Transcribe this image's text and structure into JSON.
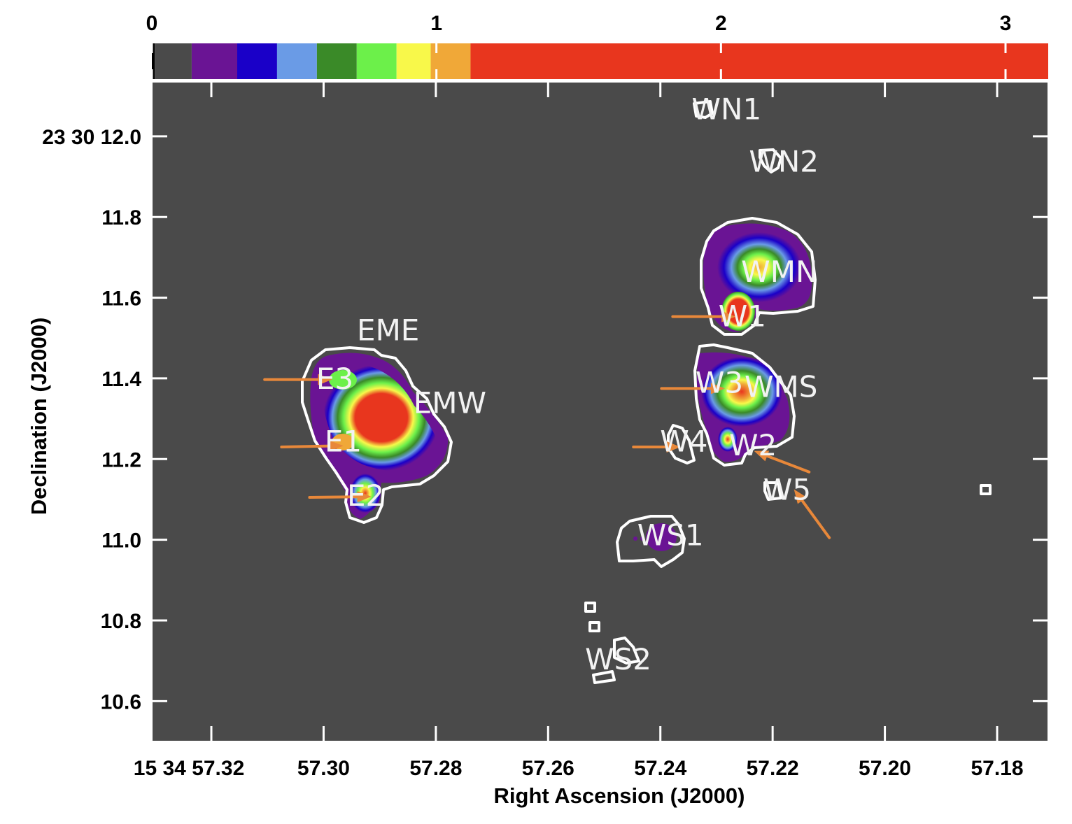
{
  "chart_data": {
    "type": "heatmap",
    "title": "",
    "xlabel": "Right Ascension (J2000)",
    "ylabel": "Declination (J2000)",
    "x_ticks": [
      {
        "value": 57.32,
        "label": "15 34 57.32"
      },
      {
        "value": 57.3,
        "label": "57.30"
      },
      {
        "value": 57.28,
        "label": "57.28"
      },
      {
        "value": 57.26,
        "label": "57.26"
      },
      {
        "value": 57.24,
        "label": "57.24"
      },
      {
        "value": 57.22,
        "label": "57.22"
      },
      {
        "value": 57.2,
        "label": "57.20"
      },
      {
        "value": 57.18,
        "label": "57.18"
      }
    ],
    "y_ticks": [
      {
        "value": 12.0,
        "label": "23 30 12.0"
      },
      {
        "value": 11.8,
        "label": "11.8"
      },
      {
        "value": 11.6,
        "label": "11.6"
      },
      {
        "value": 11.4,
        "label": "11.4"
      },
      {
        "value": 11.2,
        "label": "11.2"
      },
      {
        "value": 11.0,
        "label": "11.0"
      },
      {
        "value": 10.8,
        "label": "10.8"
      },
      {
        "value": 10.6,
        "label": "10.6"
      }
    ],
    "xlim": [
      57.3306,
      57.1709
    ],
    "ylim": [
      10.5,
      12.135
    ],
    "background_color": "#4a4a4a",
    "colorbar": {
      "range": [
        0,
        3.15
      ],
      "ticks": [
        {
          "value": 0,
          "label": "0"
        },
        {
          "value": 1,
          "label": "1"
        },
        {
          "value": 2,
          "label": "2"
        },
        {
          "value": 3,
          "label": "3"
        }
      ],
      "segments": [
        {
          "from": 0.0,
          "to": 0.01,
          "color": "#000000"
        },
        {
          "from": 0.01,
          "to": 0.14,
          "color": "#4a4a4a"
        },
        {
          "from": 0.14,
          "to": 0.3,
          "color": "#6a1494"
        },
        {
          "from": 0.3,
          "to": 0.44,
          "color": "#1a00c8"
        },
        {
          "from": 0.44,
          "to": 0.58,
          "color": "#6a9be6"
        },
        {
          "from": 0.58,
          "to": 0.72,
          "color": "#3a8a28"
        },
        {
          "from": 0.72,
          "to": 0.86,
          "color": "#6cf04a"
        },
        {
          "from": 0.86,
          "to": 0.98,
          "color": "#f8f84a"
        },
        {
          "from": 0.98,
          "to": 1.12,
          "color": "#f0a838"
        },
        {
          "from": 1.12,
          "to": 3.15,
          "color": "#e8361e"
        }
      ]
    },
    "sources": [
      {
        "name": "E1",
        "ra": 57.2965,
        "dec": 11.245,
        "arrow": {
          "from_ra": 57.3075,
          "from_dec": 11.23,
          "to_ra": 57.2965,
          "to_dec": 11.233
        }
      },
      {
        "name": "E2",
        "ra": 57.2925,
        "dec": 11.11,
        "arrow": {
          "from_ra": 57.3025,
          "from_dec": 11.105,
          "to_ra": 57.2915,
          "to_dec": 11.107
        }
      },
      {
        "name": "E3",
        "ra": 57.298,
        "dec": 11.4,
        "arrow": {
          "from_ra": 57.3105,
          "from_dec": 11.397,
          "to_ra": 57.2985,
          "to_dec": 11.397
        }
      },
      {
        "name": "EME",
        "ra": 57.2885,
        "dec": 11.52
      },
      {
        "name": "EMW",
        "ra": 57.2775,
        "dec": 11.34
      },
      {
        "name": "W1",
        "ra": 57.2254,
        "dec": 11.555,
        "arrow": {
          "from_ra": 57.2378,
          "from_dec": 11.553,
          "to_ra": 57.2266,
          "to_dec": 11.553
        }
      },
      {
        "name": "W2",
        "ra": 57.2235,
        "dec": 11.235,
        "arrow": {
          "from_ra": 57.2135,
          "from_dec": 11.168,
          "to_ra": 57.2233,
          "to_dec": 11.22
        }
      },
      {
        "name": "W3",
        "ra": 57.2295,
        "dec": 11.39,
        "arrow": {
          "from_ra": 57.2398,
          "from_dec": 11.375,
          "to_ra": 57.2285,
          "to_dec": 11.375
        }
      },
      {
        "name": "W4",
        "ra": 57.2358,
        "dec": 11.245,
        "arrow": {
          "from_ra": 57.2448,
          "from_dec": 11.23,
          "to_ra": 57.2364,
          "to_dec": 11.23
        }
      },
      {
        "name": "W5",
        "ra": 57.2174,
        "dec": 11.125,
        "arrow": {
          "from_ra": 57.2099,
          "from_dec": 11.005,
          "to_ra": 57.2162,
          "to_dec": 11.125
        }
      },
      {
        "name": "WMN",
        "ra": 57.2188,
        "dec": 11.665
      },
      {
        "name": "WMS",
        "ra": 57.2185,
        "dec": 11.38
      },
      {
        "name": "WN1",
        "ra": 57.2282,
        "dec": 12.068
      },
      {
        "name": "WN2",
        "ra": 57.218,
        "dec": 11.938
      },
      {
        "name": "WS1",
        "ra": 57.2382,
        "dec": 11.012
      },
      {
        "name": "WS2",
        "ra": 57.2475,
        "dec": 10.705
      }
    ],
    "contour_color": "#ffffff",
    "arrow_color": "#e8883a"
  }
}
